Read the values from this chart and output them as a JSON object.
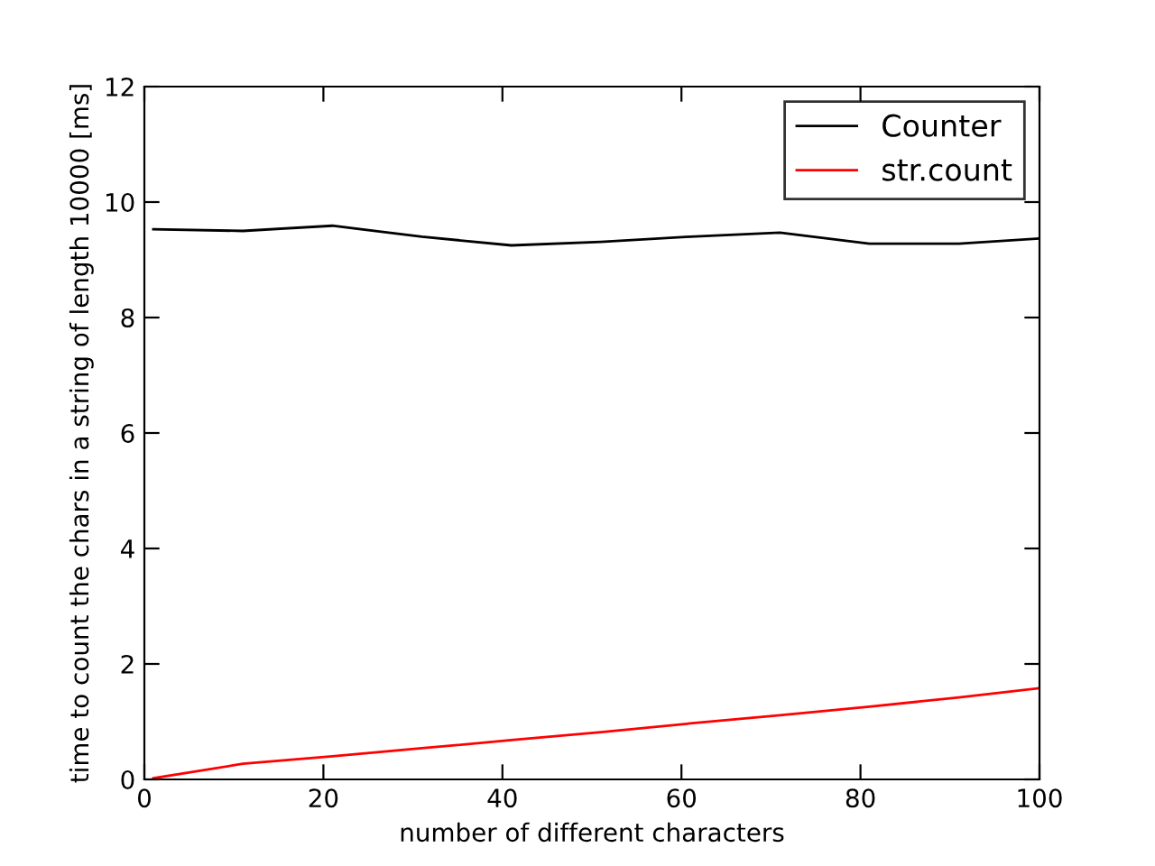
{
  "chart_data": {
    "type": "line",
    "xlabel": "number of different characters",
    "ylabel": "time to count the chars in a string of length 10000 [ms]",
    "x": [
      1,
      11,
      21,
      31,
      41,
      51,
      61,
      71,
      81,
      91,
      100
    ],
    "series": [
      {
        "name": "Counter",
        "color": "#000000",
        "values": [
          9.53,
          9.5,
          9.59,
          9.4,
          9.25,
          9.31,
          9.4,
          9.47,
          9.28,
          9.28,
          9.37
        ]
      },
      {
        "name": "str.count",
        "color": "#ff0000",
        "values": [
          0.02,
          0.27,
          0.4,
          0.54,
          0.68,
          0.82,
          0.97,
          1.11,
          1.26,
          1.42,
          1.58
        ]
      }
    ],
    "xlim": [
      0,
      100
    ],
    "xticks": [
      0,
      20,
      40,
      60,
      80,
      100
    ],
    "ylim": [
      0,
      12
    ],
    "yticks": [
      0,
      2,
      4,
      6,
      8,
      10,
      12
    ],
    "grid": false,
    "legend": "top right",
    "marker": "none",
    "line_style": "solid"
  }
}
